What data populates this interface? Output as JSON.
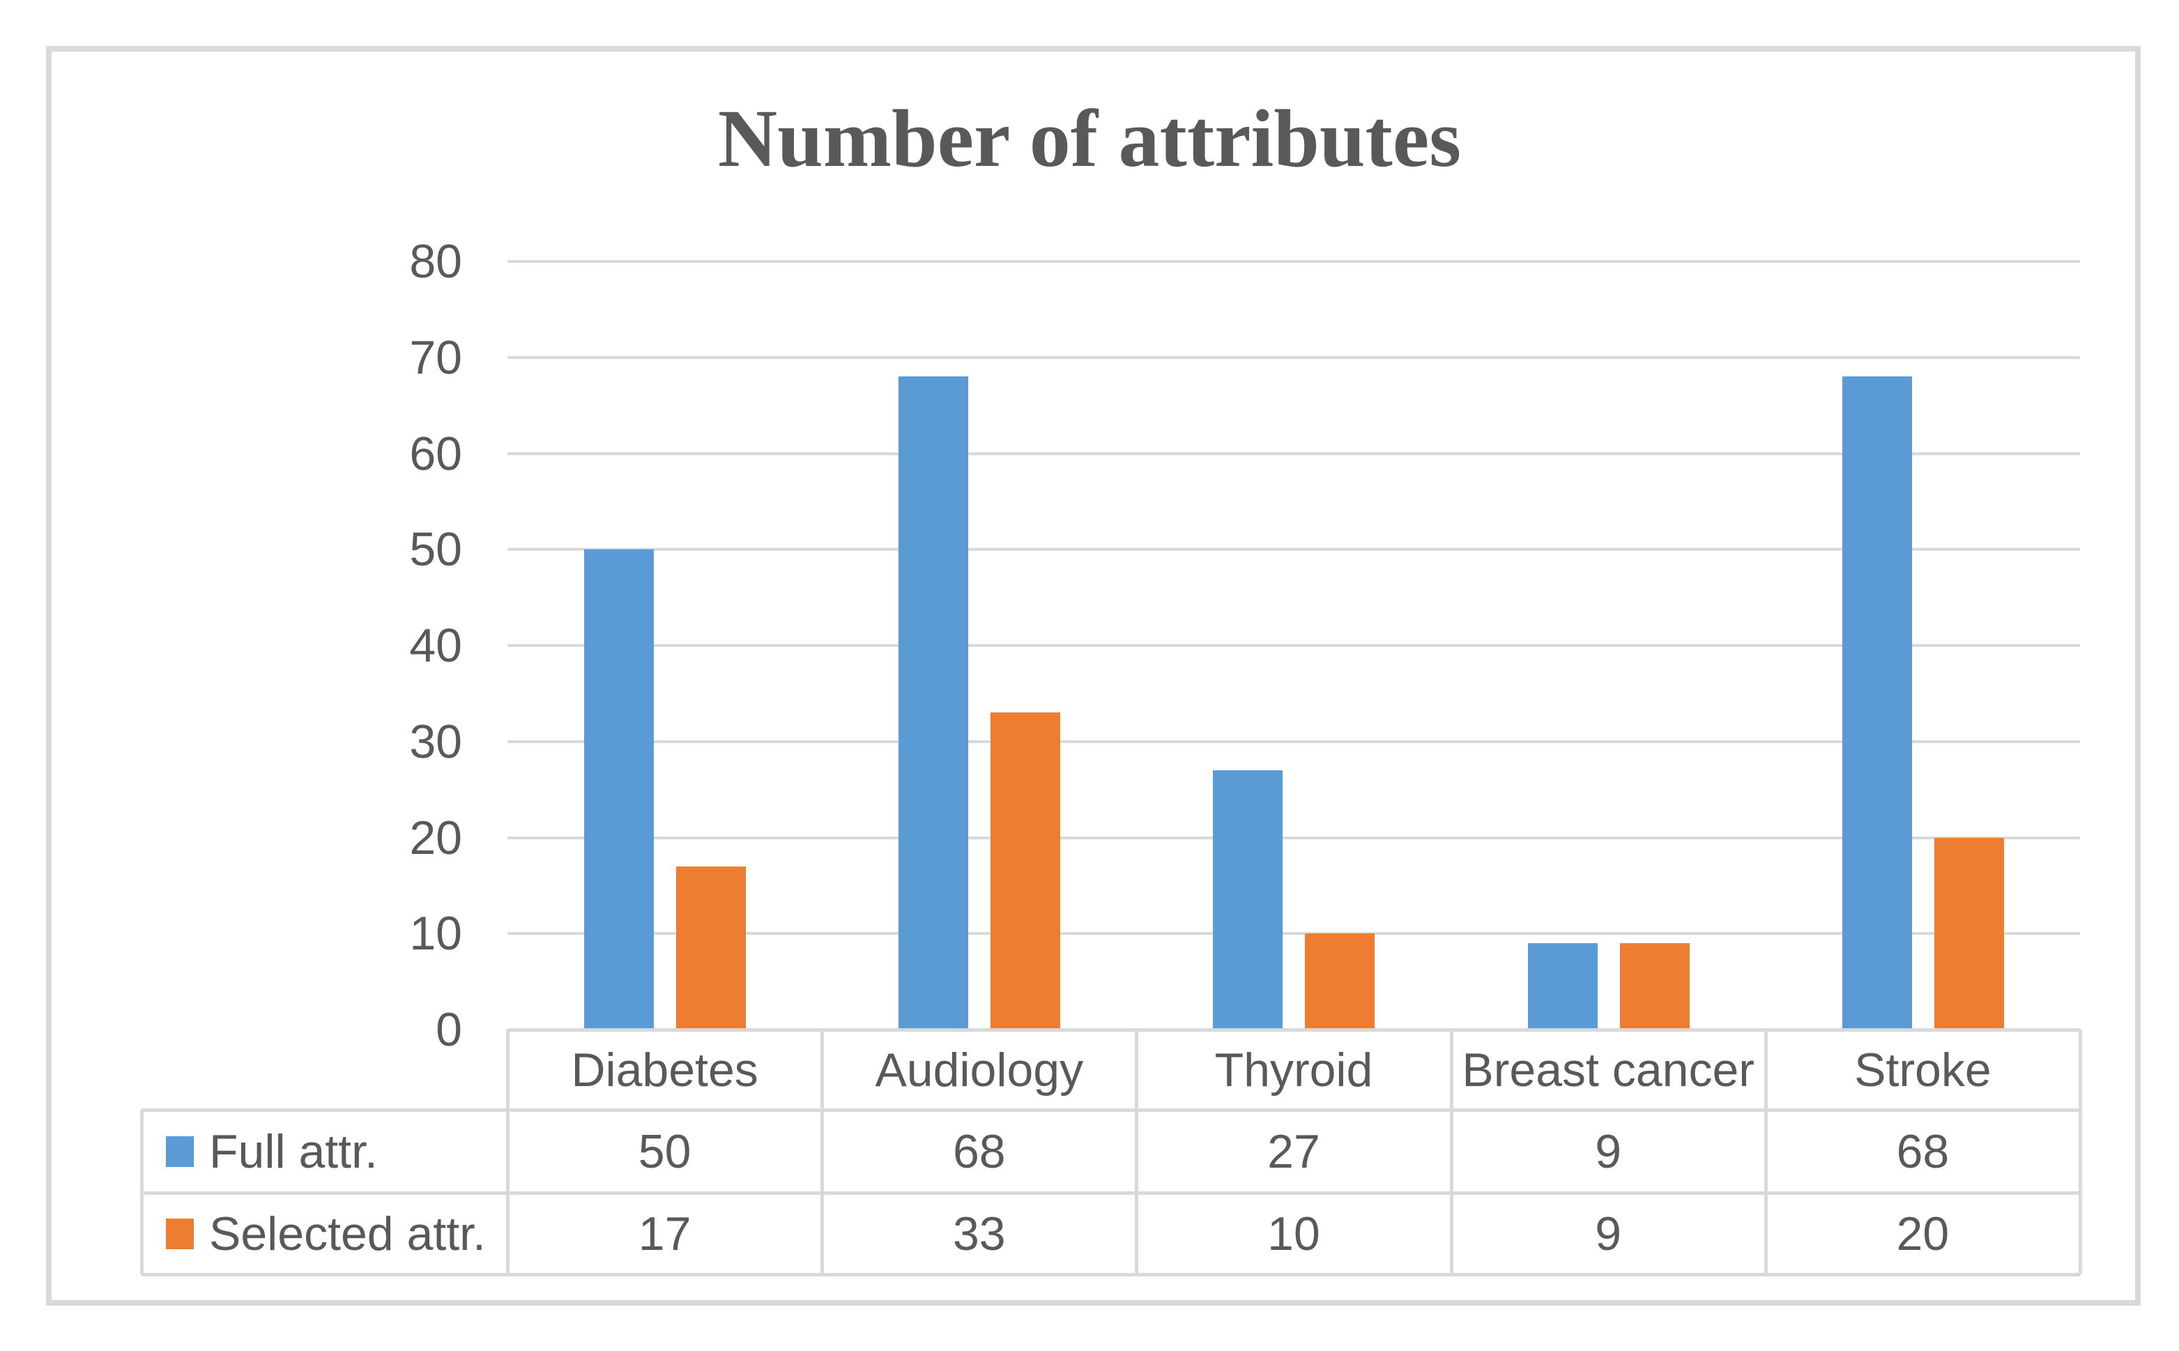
{
  "chart_data": {
    "type": "bar",
    "title": "Number of attributes",
    "categories": [
      "Diabetes",
      "Audiology",
      "Thyroid",
      "Breast cancer",
      "Stroke"
    ],
    "series": [
      {
        "name": "Full attr.",
        "color": "#5B9BD5",
        "values": [
          50,
          68,
          27,
          9,
          68
        ]
      },
      {
        "name": "Selected attr.",
        "color": "#ED7D31",
        "values": [
          17,
          33,
          10,
          9,
          20
        ]
      }
    ],
    "ylim": [
      0,
      80
    ],
    "ytick_step": 10,
    "ytick_labels": [
      "80",
      "70",
      "60",
      "50",
      "40",
      "30",
      "20",
      "10",
      "0"
    ],
    "grid": true,
    "legend_position": "data-table-left",
    "xlabel": "",
    "ylabel": "",
    "colors": {
      "text": "#595959",
      "title_text": "#595959",
      "gridline": "#d9d9d9",
      "table_border": "#d9d9d9",
      "frame_border": "#d9d9d9",
      "background": "#ffffff"
    }
  }
}
